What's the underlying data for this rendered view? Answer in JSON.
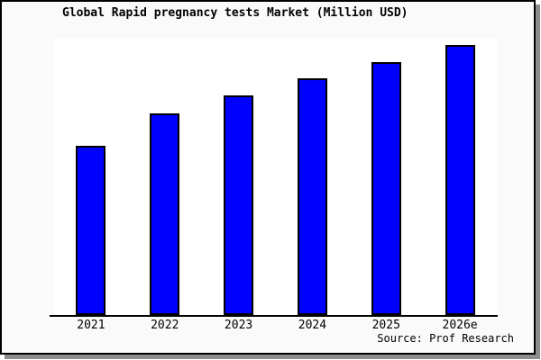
{
  "figure": {
    "background": "#fafafa",
    "border_color": "#000000",
    "shadow_color": "#8d8d8d",
    "plot_background": "#ffffff"
  },
  "chart_data": {
    "type": "bar",
    "title": "Global Rapid pregnancy tests Market (Million USD)",
    "categories": [
      "2021",
      "2022",
      "2023",
      "2024",
      "2025",
      "2026e"
    ],
    "values": [
      188,
      224,
      244,
      263,
      281,
      300
    ],
    "values_note": "y-axis is unlabeled; values are relative bar heights estimated from pixels",
    "xlabel": "",
    "ylabel": "",
    "ylim": [
      0,
      307
    ],
    "grid": false,
    "legend": false,
    "bar_color": "#0000ff",
    "bar_border_color": "#000000",
    "axis_color": "#000000",
    "source": "Source: Prof Research"
  }
}
